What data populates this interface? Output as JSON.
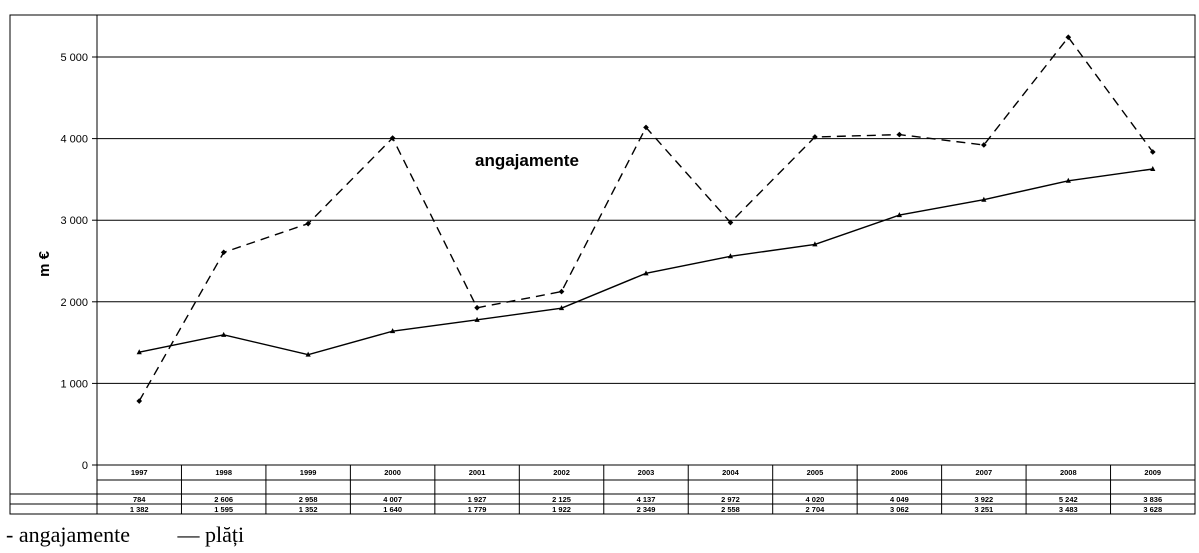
{
  "chart_data": {
    "type": "line",
    "categories": [
      "1997",
      "1998",
      "1999",
      "2000",
      "2001",
      "2002",
      "2003",
      "2004",
      "2005",
      "2006",
      "2007",
      "2008",
      "2009"
    ],
    "series": [
      {
        "name": "angajamente",
        "style": "dashed",
        "values": [
          784,
          2606,
          2958,
          4007,
          1927,
          2125,
          4137,
          2972,
          4020,
          4049,
          3922,
          5242,
          3836
        ]
      },
      {
        "name": "plăți",
        "style": "solid",
        "values": [
          1382,
          1595,
          1352,
          1640,
          1779,
          1922,
          2349,
          2558,
          2704,
          3062,
          3251,
          3483,
          3628
        ]
      }
    ],
    "table_rows": [
      [
        "784",
        "2 606",
        "2 958",
        "4 007",
        "1 927",
        "2 125",
        "4 137",
        "2 972",
        "4 020",
        "4 049",
        "3 922",
        "5 242",
        "3 836"
      ],
      [
        "1 382",
        "1 595",
        "1 352",
        "1 640",
        "1 779",
        "1 922",
        "2 349",
        "2 558",
        "2 704",
        "3 062",
        "3 251",
        "3 483",
        "3 628"
      ]
    ],
    "ylabel": "m €",
    "ylim": [
      0,
      5000
    ],
    "yticks": [
      0,
      1000,
      2000,
      3000,
      4000,
      5000
    ],
    "ytick_labels": [
      "0",
      "1 000",
      "2 000",
      "3 000",
      "4 000",
      "5 000"
    ],
    "grid": true,
    "annotation": "angajamente"
  },
  "legend": {
    "item1": "- angajamente",
    "item2": "— plăți"
  },
  "colors": {
    "line": "#000000",
    "grid": "#000000",
    "background": "#ffffff"
  }
}
